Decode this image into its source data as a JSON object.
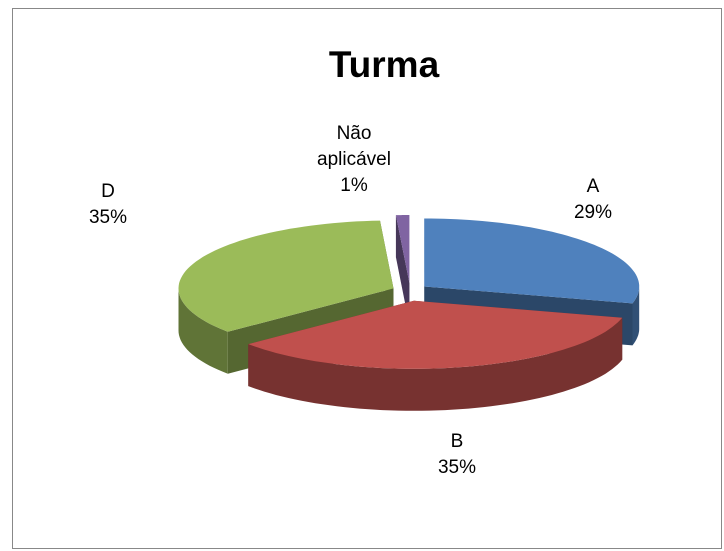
{
  "chart_data": {
    "type": "pie",
    "title": "Turma",
    "categories": [
      "A",
      "B",
      "D",
      "Não aplicável"
    ],
    "values": [
      29,
      35,
      35,
      1
    ],
    "value_labels": [
      "29%",
      "35%",
      "35%",
      "1%"
    ],
    "colors": [
      "#4f81bd",
      "#c0504d",
      "#9bbb59",
      "#8064a2"
    ]
  }
}
